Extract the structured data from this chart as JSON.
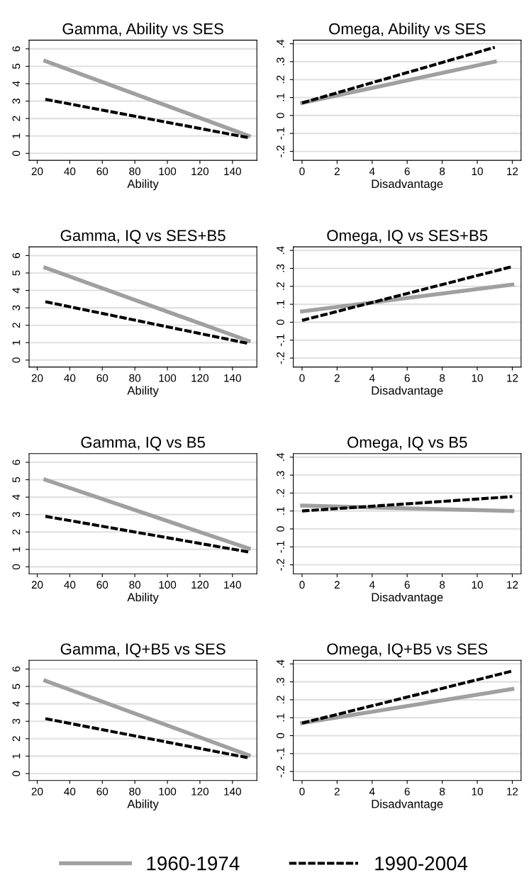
{
  "chart_data": [
    {
      "type": "line",
      "title": "Gamma, Ability vs SES",
      "xlabel": "Ability",
      "xlim": [
        15,
        155
      ],
      "xticks": [
        20,
        40,
        60,
        80,
        100,
        120,
        140
      ],
      "ylim": [
        -0.4,
        6.5
      ],
      "yticks": [
        0,
        1,
        2,
        3,
        4,
        5,
        6
      ],
      "grid": "y",
      "legend": "bottom",
      "series": [
        {
          "name": "1960-1974",
          "color": "#a0a0a0",
          "line_style": "solid",
          "x": [
            25,
            150
          ],
          "values": [
            5.3,
            1.0
          ]
        },
        {
          "name": "1990-2004",
          "color": "#000000",
          "line_style": "dashed",
          "x": [
            25,
            150
          ],
          "values": [
            3.1,
            0.9
          ]
        }
      ]
    },
    {
      "type": "line",
      "title": "Omega, Ability vs SES",
      "xlabel": "Disadvantage",
      "xlim": [
        -0.5,
        12.5
      ],
      "xticks": [
        0,
        2,
        4,
        6,
        8,
        10,
        12
      ],
      "ylim": [
        -0.25,
        0.42
      ],
      "yticks": [
        {
          "value": -0.2,
          "label": "-.2"
        },
        {
          "value": -0.1,
          "label": "-.1"
        },
        0,
        {
          "value": 0.1,
          "label": ".1"
        },
        {
          "value": 0.2,
          "label": ".2"
        },
        {
          "value": 0.3,
          "label": ".3"
        },
        {
          "value": 0.4,
          "label": ".4"
        }
      ],
      "grid": "y",
      "series": [
        {
          "color": "#a0a0a0",
          "line_style": "solid",
          "x": [
            0,
            11
          ],
          "values": [
            0.07,
            0.3
          ]
        },
        {
          "color": "#000000",
          "line_style": "dashed",
          "x": [
            0,
            11
          ],
          "values": [
            0.07,
            0.38
          ]
        }
      ]
    },
    {
      "type": "line",
      "title": "Gamma, IQ vs SES+B5",
      "xlabel": "Ability",
      "xlim": [
        15,
        155
      ],
      "xticks": [
        20,
        40,
        60,
        80,
        100,
        120,
        140
      ],
      "ylim": [
        -0.4,
        6.5
      ],
      "yticks": [
        0,
        1,
        2,
        3,
        4,
        5,
        6
      ],
      "grid": "y",
      "series": [
        {
          "color": "#a0a0a0",
          "line_style": "solid",
          "x": [
            25,
            150
          ],
          "values": [
            5.3,
            1.1
          ]
        },
        {
          "color": "#000000",
          "line_style": "dashed",
          "x": [
            25,
            150
          ],
          "values": [
            3.35,
            0.95
          ]
        }
      ]
    },
    {
      "type": "line",
      "title": "Omega, IQ vs SES+B5",
      "xlabel": "Disadvantage",
      "xlim": [
        -0.5,
        12.5
      ],
      "xticks": [
        0,
        2,
        4,
        6,
        8,
        10,
        12
      ],
      "ylim": [
        -0.25,
        0.42
      ],
      "yticks": [
        {
          "value": -0.2,
          "label": "-.2"
        },
        {
          "value": -0.1,
          "label": "-.1"
        },
        0,
        {
          "value": 0.1,
          "label": ".1"
        },
        {
          "value": 0.2,
          "label": ".2"
        },
        {
          "value": 0.3,
          "label": ".3"
        },
        {
          "value": 0.4,
          "label": ".4"
        }
      ],
      "grid": "y",
      "series": [
        {
          "color": "#a0a0a0",
          "line_style": "solid",
          "x": [
            0,
            12
          ],
          "values": [
            0.06,
            0.21
          ]
        },
        {
          "color": "#000000",
          "line_style": "dashed",
          "x": [
            0,
            12
          ],
          "values": [
            0.01,
            0.31
          ]
        }
      ]
    },
    {
      "type": "line",
      "title": "Gamma, IQ vs B5",
      "xlabel": "Ability",
      "xlim": [
        15,
        155
      ],
      "xticks": [
        20,
        40,
        60,
        80,
        100,
        120,
        140
      ],
      "ylim": [
        -0.4,
        6.5
      ],
      "yticks": [
        0,
        1,
        2,
        3,
        4,
        5,
        6
      ],
      "grid": "y",
      "series": [
        {
          "color": "#a0a0a0",
          "line_style": "solid",
          "x": [
            25,
            150
          ],
          "values": [
            5.0,
            1.05
          ]
        },
        {
          "color": "#000000",
          "line_style": "dashed",
          "x": [
            25,
            150
          ],
          "values": [
            2.9,
            0.85
          ]
        }
      ]
    },
    {
      "type": "line",
      "title": "Omega, IQ vs B5",
      "xlabel": "Disadvantage",
      "xlim": [
        -0.5,
        12.5
      ],
      "xticks": [
        0,
        2,
        4,
        6,
        8,
        10,
        12
      ],
      "ylim": [
        -0.25,
        0.42
      ],
      "yticks": [
        {
          "value": -0.2,
          "label": "-.2"
        },
        {
          "value": -0.1,
          "label": "-.1"
        },
        0,
        {
          "value": 0.1,
          "label": ".1"
        },
        {
          "value": 0.2,
          "label": ".2"
        },
        {
          "value": 0.3,
          "label": ".3"
        },
        {
          "value": 0.4,
          "label": ".4"
        }
      ],
      "grid": "y",
      "series": [
        {
          "color": "#a0a0a0",
          "line_style": "solid",
          "x": [
            0,
            12
          ],
          "values": [
            0.13,
            0.1
          ]
        },
        {
          "color": "#000000",
          "line_style": "dashed",
          "x": [
            0,
            12
          ],
          "values": [
            0.1,
            0.18
          ]
        }
      ]
    },
    {
      "type": "line",
      "title": "Gamma, IQ+B5 vs SES",
      "xlabel": "Ability",
      "xlim": [
        15,
        155
      ],
      "xticks": [
        20,
        40,
        60,
        80,
        100,
        120,
        140
      ],
      "ylim": [
        -0.4,
        6.5
      ],
      "yticks": [
        0,
        1,
        2,
        3,
        4,
        5,
        6
      ],
      "grid": "y",
      "series": [
        {
          "color": "#a0a0a0",
          "line_style": "solid",
          "x": [
            25,
            150
          ],
          "values": [
            5.33,
            1.05
          ]
        },
        {
          "color": "#000000",
          "line_style": "dashed",
          "x": [
            25,
            150
          ],
          "values": [
            3.15,
            0.9
          ]
        }
      ]
    },
    {
      "type": "line",
      "title": "Omega, IQ+B5 vs SES",
      "xlabel": "Disadvantage",
      "xlim": [
        -0.5,
        12.5
      ],
      "xticks": [
        0,
        2,
        4,
        6,
        8,
        10,
        12
      ],
      "ylim": [
        -0.25,
        0.42
      ],
      "yticks": [
        {
          "value": -0.2,
          "label": "-.2"
        },
        {
          "value": -0.1,
          "label": "-.1"
        },
        0,
        {
          "value": 0.1,
          "label": ".1"
        },
        {
          "value": 0.2,
          "label": ".2"
        },
        {
          "value": 0.3,
          "label": ".3"
        },
        {
          "value": 0.4,
          "label": ".4"
        }
      ],
      "grid": "y",
      "series": [
        {
          "color": "#a0a0a0",
          "line_style": "solid",
          "x": [
            0,
            12
          ],
          "values": [
            0.07,
            0.26
          ]
        },
        {
          "color": "#000000",
          "line_style": "dashed",
          "x": [
            0,
            12
          ],
          "values": [
            0.07,
            0.36
          ]
        }
      ]
    }
  ]
}
